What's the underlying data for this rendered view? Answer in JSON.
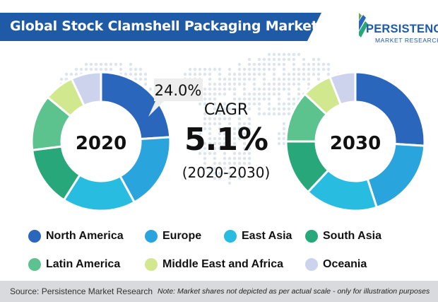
{
  "header": {
    "title": "Global Stock Clamshell Packaging Market"
  },
  "logo": {
    "name": "PERSISTENCE",
    "subtitle": "MARKET RESEARCH"
  },
  "cagr": {
    "label": "CAGR",
    "value": "5.1%",
    "period": "(2020-2030)"
  },
  "callout": {
    "value": "24.0%"
  },
  "footer": {
    "source": "Source: Persistence Market Research",
    "note": "Note: Market shares not depicted as per actual scale - only for illustration purposes"
  },
  "chart_data": [
    {
      "type": "pie",
      "hole": true,
      "title": "2020",
      "categories": [
        "North America",
        "Europe",
        "East Asia",
        "South Asia",
        "Latin America",
        "Middle East and Africa",
        "Oceania"
      ],
      "values": [
        24.0,
        18.0,
        17.0,
        14.0,
        13.0,
        7.0,
        7.0
      ],
      "annotations": [
        {
          "category": "North America",
          "text": "24.0%"
        }
      ]
    },
    {
      "type": "pie",
      "hole": true,
      "title": "2030",
      "categories": [
        "North America",
        "Europe",
        "East Asia",
        "South Asia",
        "Latin America",
        "Middle East and Africa",
        "Oceania"
      ],
      "values": [
        26.0,
        19.0,
        17.0,
        13.0,
        12.0,
        7.0,
        6.0
      ]
    }
  ],
  "legend": {
    "items": [
      {
        "label": "North America",
        "color": "#2a66bb"
      },
      {
        "label": "Europe",
        "color": "#2aa4dd"
      },
      {
        "label": "East Asia",
        "color": "#28bde0"
      },
      {
        "label": "South Asia",
        "color": "#27a77a"
      },
      {
        "label": "Latin America",
        "color": "#5cc28e"
      },
      {
        "label": "Middle East and Africa",
        "color": "#d2e88f"
      },
      {
        "label": "Oceania",
        "color": "#cdd3ec"
      }
    ]
  },
  "colors": {
    "title_banner": "#1f5aa6",
    "footer": "#d9dadd",
    "map_dots": "#dde4ee",
    "callout_bubble": "#ededed"
  }
}
